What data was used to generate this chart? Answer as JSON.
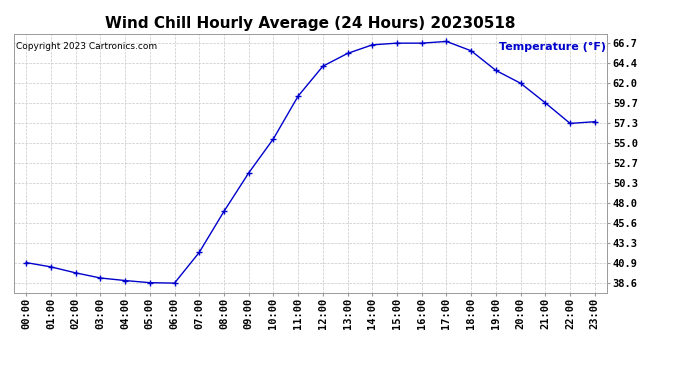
{
  "title": "Wind Chill Hourly Average (24 Hours) 20230518",
  "ylabel": "Temperature (°F)",
  "copyright": "Copyright 2023 Cartronics.com",
  "line_color": "#0000cc",
  "background_color": "#ffffff",
  "grid_color": "#c8c8c8",
  "hours": [
    "00:00",
    "01:00",
    "02:00",
    "03:00",
    "04:00",
    "05:00",
    "06:00",
    "07:00",
    "08:00",
    "09:00",
    "10:00",
    "11:00",
    "12:00",
    "13:00",
    "14:00",
    "15:00",
    "16:00",
    "17:00",
    "18:00",
    "19:00",
    "20:00",
    "21:00",
    "22:00",
    "23:00"
  ],
  "values": [
    41.0,
    40.5,
    39.8,
    39.2,
    38.9,
    38.65,
    38.6,
    42.2,
    47.0,
    51.5,
    55.5,
    60.5,
    64.0,
    65.5,
    66.5,
    66.7,
    66.7,
    66.9,
    65.8,
    63.5,
    62.0,
    59.7,
    57.3,
    57.5
  ],
  "yticks": [
    38.6,
    40.9,
    43.3,
    45.6,
    48.0,
    50.3,
    52.7,
    55.0,
    57.3,
    59.7,
    62.0,
    64.4,
    66.7
  ],
  "ytick_labels": [
    "38.6",
    "40.9",
    "43.3",
    "45.6",
    "48.0",
    "50.3",
    "52.7",
    "55.0",
    "57.3",
    "59.7",
    "62.0",
    "64.4",
    "66.7"
  ],
  "ylim": [
    37.5,
    67.8
  ],
  "ylabel_color": "#0000cc",
  "title_fontsize": 11,
  "copyright_fontsize": 6.5,
  "ylabel_label_fontsize": 8,
  "tick_fontsize": 7.5
}
